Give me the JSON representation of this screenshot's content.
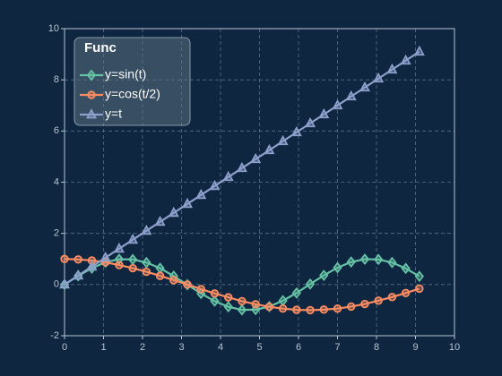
{
  "chart_data": {
    "type": "line",
    "x": [
      0,
      0.35,
      0.7,
      1.05,
      1.4,
      1.75,
      2.1,
      2.45,
      2.8,
      3.15,
      3.5,
      3.85,
      4.2,
      4.55,
      4.9,
      5.25,
      5.6,
      5.95,
      6.3,
      6.65,
      7.0,
      7.35,
      7.7,
      8.05,
      8.4,
      8.75,
      9.1
    ],
    "series": [
      {
        "name": "y=sin(t)",
        "color": "#66c2a5",
        "marker": "diamond",
        "values": [
          0,
          0.34,
          0.64,
          0.87,
          0.99,
          0.98,
          0.86,
          0.64,
          0.33,
          -0.01,
          -0.35,
          -0.65,
          -0.87,
          -0.99,
          -0.98,
          -0.86,
          -0.63,
          -0.33,
          0.02,
          0.36,
          0.66,
          0.88,
          0.99,
          0.98,
          0.86,
          0.63,
          0.32
        ]
      },
      {
        "name": "y=cos(t/2)",
        "color": "#fc8d62",
        "marker": "circle",
        "values": [
          1,
          0.98,
          0.94,
          0.87,
          0.76,
          0.64,
          0.5,
          0.34,
          0.17,
          0,
          -0.18,
          -0.35,
          -0.5,
          -0.65,
          -0.77,
          -0.87,
          -0.94,
          -0.99,
          -1,
          -0.98,
          -0.94,
          -0.86,
          -0.76,
          -0.63,
          -0.49,
          -0.33,
          -0.16
        ]
      },
      {
        "name": "y=t",
        "color": "#8da0cb",
        "marker": "triangle",
        "values": [
          0,
          0.35,
          0.7,
          1.05,
          1.4,
          1.75,
          2.1,
          2.45,
          2.8,
          3.15,
          3.5,
          3.85,
          4.2,
          4.55,
          4.9,
          5.25,
          5.6,
          5.95,
          6.3,
          6.65,
          7.0,
          7.35,
          7.7,
          8.05,
          8.4,
          8.75,
          9.1
        ]
      }
    ],
    "legend_title": "Func",
    "legend_position": "upper-left",
    "xlim": [
      0,
      10
    ],
    "xticks": [
      0,
      1,
      2,
      3,
      4,
      5,
      6,
      7,
      8,
      9,
      10
    ],
    "ylim": [
      -2,
      10
    ],
    "yticks": [
      -2,
      0,
      2,
      4,
      6,
      8,
      10
    ],
    "grid": true
  }
}
